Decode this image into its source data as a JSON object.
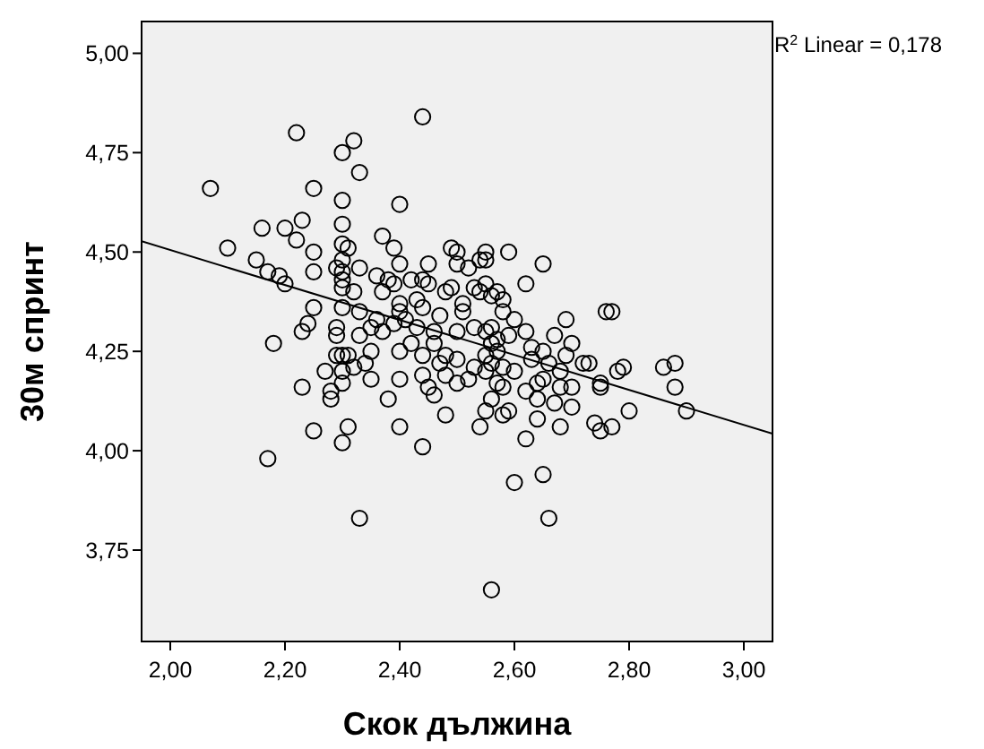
{
  "chart_data": {
    "type": "scatter",
    "xlabel": "Скок дължина",
    "ylabel": "30м спринт",
    "annotations": [
      "R$^{2}$ Linear = 0,178"
    ],
    "xlim": [
      1.95,
      3.05
    ],
    "ylim": [
      3.52,
      5.08
    ],
    "xticks": [
      {
        "value": 2,
        "label": "2,00"
      },
      {
        "value": 2.2,
        "label": "2,20"
      },
      {
        "value": 2.4,
        "label": "2,40"
      },
      {
        "value": 2.6,
        "label": "2,60"
      },
      {
        "value": 2.8,
        "label": "2,80"
      },
      {
        "value": 3,
        "label": "3,00"
      }
    ],
    "yticks": [
      {
        "value": 3.75,
        "label": "3,75"
      },
      {
        "value": 4,
        "label": "4,00"
      },
      {
        "value": 4.25,
        "label": "4,25"
      },
      {
        "value": 4.5,
        "label": "4,50"
      },
      {
        "value": 4.75,
        "label": "4,75"
      },
      {
        "value": 5,
        "label": "5,00"
      }
    ],
    "grid": false,
    "marker": "circle",
    "series": [
      {
        "color": "#000000",
        "x": [
          2.07,
          2.1,
          2.15,
          2.16,
          2.17,
          2.19,
          2.2,
          2.2,
          2.22,
          2.23,
          2.22,
          2.18,
          2.17,
          2.23,
          2.24,
          2.23,
          2.25,
          2.25,
          2.25,
          2.25,
          2.25,
          2.27,
          2.28,
          2.28,
          2.29,
          2.29,
          2.29,
          2.29,
          2.3,
          2.3,
          2.3,
          2.3,
          2.3,
          2.3,
          2.3,
          2.3,
          2.3,
          2.3,
          2.3,
          2.3,
          2.3,
          2.31,
          2.31,
          2.31,
          2.32,
          2.32,
          2.32,
          2.33,
          2.33,
          2.33,
          2.33,
          2.33,
          2.34,
          2.35,
          2.35,
          2.35,
          2.36,
          2.36,
          2.37,
          2.37,
          2.37,
          2.38,
          2.38,
          2.39,
          2.39,
          2.39,
          2.4,
          2.4,
          2.4,
          2.4,
          2.4,
          2.4,
          2.4,
          2.41,
          2.42,
          2.42,
          2.43,
          2.43,
          2.44,
          2.44,
          2.44,
          2.44,
          2.44,
          2.44,
          2.45,
          2.45,
          2.45,
          2.46,
          2.46,
          2.46,
          2.47,
          2.47,
          2.48,
          2.48,
          2.48,
          2.48,
          2.49,
          2.49,
          2.5,
          2.5,
          2.5,
          2.5,
          2.5,
          2.51,
          2.51,
          2.52,
          2.52,
          2.53,
          2.53,
          2.53,
          2.54,
          2.54,
          2.54,
          2.55,
          2.55,
          2.55,
          2.55,
          2.55,
          2.55,
          2.55,
          2.56,
          2.56,
          2.56,
          2.56,
          2.56,
          2.56,
          2.57,
          2.57,
          2.57,
          2.57,
          2.58,
          2.58,
          2.58,
          2.58,
          2.58,
          2.59,
          2.59,
          2.59,
          2.6,
          2.6,
          2.6,
          2.62,
          2.62,
          2.62,
          2.62,
          2.63,
          2.63,
          2.64,
          2.64,
          2.64,
          2.65,
          2.65,
          2.65,
          2.65,
          2.66,
          2.66,
          2.67,
          2.67,
          2.68,
          2.68,
          2.68,
          2.69,
          2.69,
          2.7,
          2.7,
          2.7,
          2.72,
          2.73,
          2.74,
          2.75,
          2.75,
          2.75,
          2.76,
          2.77,
          2.77,
          2.78,
          2.79,
          2.8,
          2.86,
          2.88,
          2.88,
          2.9
        ],
        "values": [
          4.66,
          4.51,
          4.48,
          4.56,
          4.45,
          4.44,
          4.42,
          4.56,
          4.53,
          4.58,
          4.8,
          4.27,
          3.98,
          4.3,
          4.32,
          4.16,
          4.66,
          4.5,
          4.45,
          4.36,
          4.05,
          4.2,
          4.15,
          4.13,
          4.31,
          4.29,
          4.24,
          4.46,
          4.75,
          4.63,
          4.57,
          4.52,
          4.48,
          4.45,
          4.43,
          4.41,
          4.36,
          4.24,
          4.2,
          4.17,
          4.02,
          4.06,
          4.51,
          4.24,
          4.78,
          4.4,
          4.21,
          4.7,
          4.46,
          4.35,
          4.29,
          3.83,
          4.22,
          4.31,
          4.25,
          4.18,
          4.33,
          4.44,
          4.54,
          4.4,
          4.3,
          4.13,
          4.43,
          4.51,
          4.42,
          4.32,
          4.62,
          4.47,
          4.37,
          4.35,
          4.25,
          4.18,
          4.06,
          4.33,
          4.27,
          4.43,
          4.38,
          4.31,
          4.84,
          4.43,
          4.36,
          4.24,
          4.19,
          4.01,
          4.47,
          4.42,
          4.16,
          4.3,
          4.27,
          4.14,
          4.34,
          4.22,
          4.4,
          4.24,
          4.19,
          4.09,
          4.51,
          4.41,
          4.5,
          4.47,
          4.3,
          4.23,
          4.17,
          4.37,
          4.35,
          4.46,
          4.18,
          4.41,
          4.31,
          4.21,
          4.48,
          4.4,
          4.06,
          4.5,
          4.48,
          4.42,
          4.3,
          4.24,
          4.2,
          4.1,
          4.39,
          4.31,
          4.27,
          4.22,
          4.13,
          3.65,
          4.4,
          4.28,
          4.25,
          4.17,
          4.38,
          4.35,
          4.21,
          4.16,
          4.09,
          4.5,
          4.29,
          4.1,
          4.33,
          4.2,
          3.92,
          4.42,
          4.3,
          4.15,
          4.03,
          4.26,
          4.23,
          4.17,
          4.13,
          4.08,
          4.47,
          4.25,
          4.18,
          3.94,
          4.22,
          3.83,
          4.29,
          4.12,
          4.2,
          4.16,
          4.06,
          4.33,
          4.24,
          4.27,
          4.16,
          4.11,
          4.22,
          4.22,
          4.07,
          4.17,
          4.16,
          4.05,
          4.35,
          4.35,
          4.06,
          4.2,
          4.21,
          4.1,
          4.21,
          4.22,
          4.16,
          4.1
        ]
      },
      {
        "type": "line",
        "color": "#000000",
        "marker": "none",
        "line_style": "solid",
        "x": [
          1.95,
          3.05
        ],
        "values": [
          4.527,
          4.043
        ]
      }
    ]
  }
}
